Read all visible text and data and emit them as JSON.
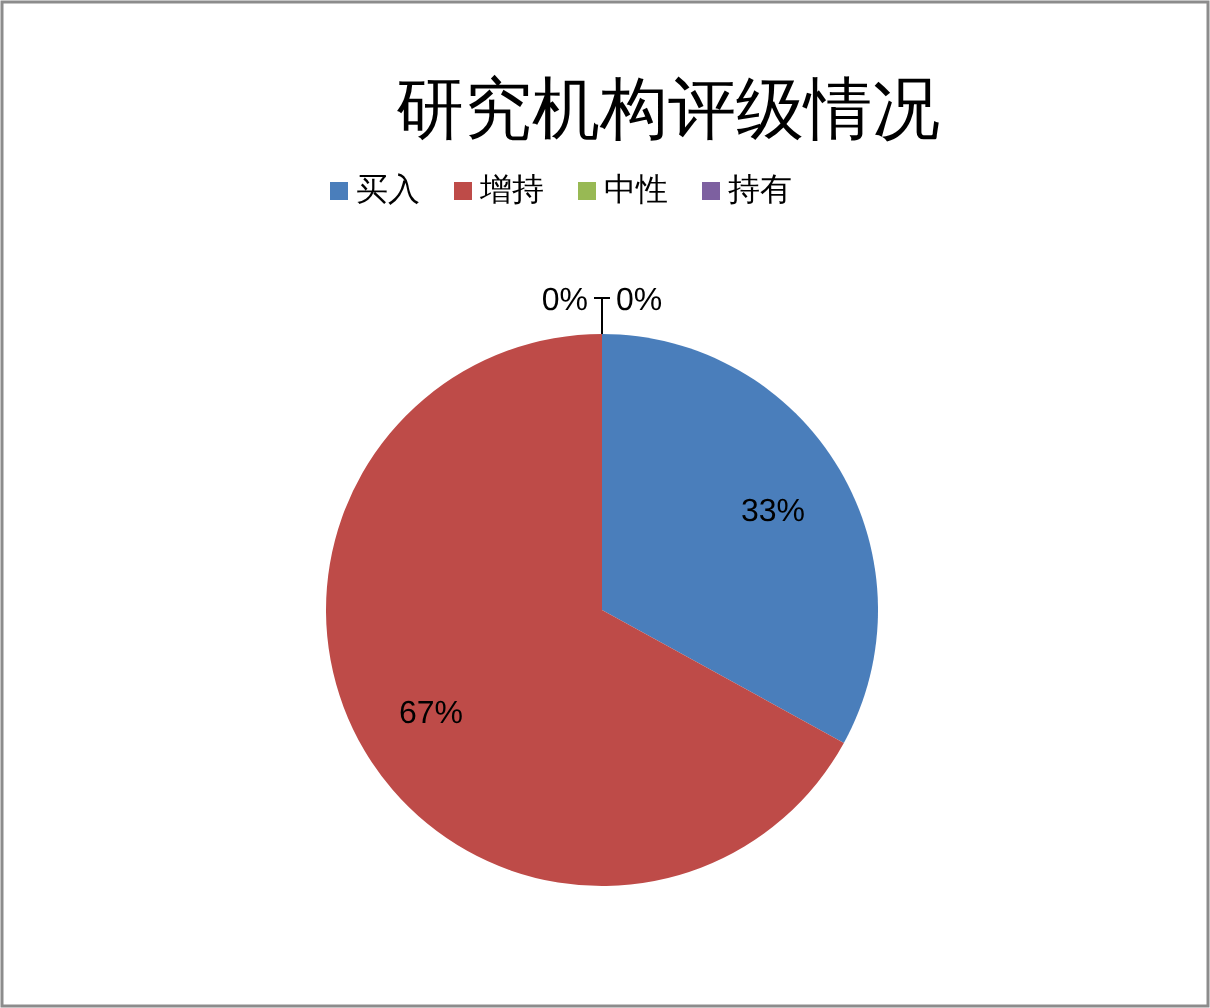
{
  "chart_data": {
    "type": "pie",
    "title": "研究机构评级情况",
    "categories": [
      "买入",
      "增持",
      "中性",
      "持有"
    ],
    "values": [
      33,
      67,
      0,
      0
    ],
    "colors": [
      "#4a7ebb",
      "#be4b48",
      "#98b954",
      "#7d60a0"
    ],
    "value_labels": [
      "33%",
      "67%",
      "0%",
      "0%"
    ],
    "legend": "top"
  }
}
